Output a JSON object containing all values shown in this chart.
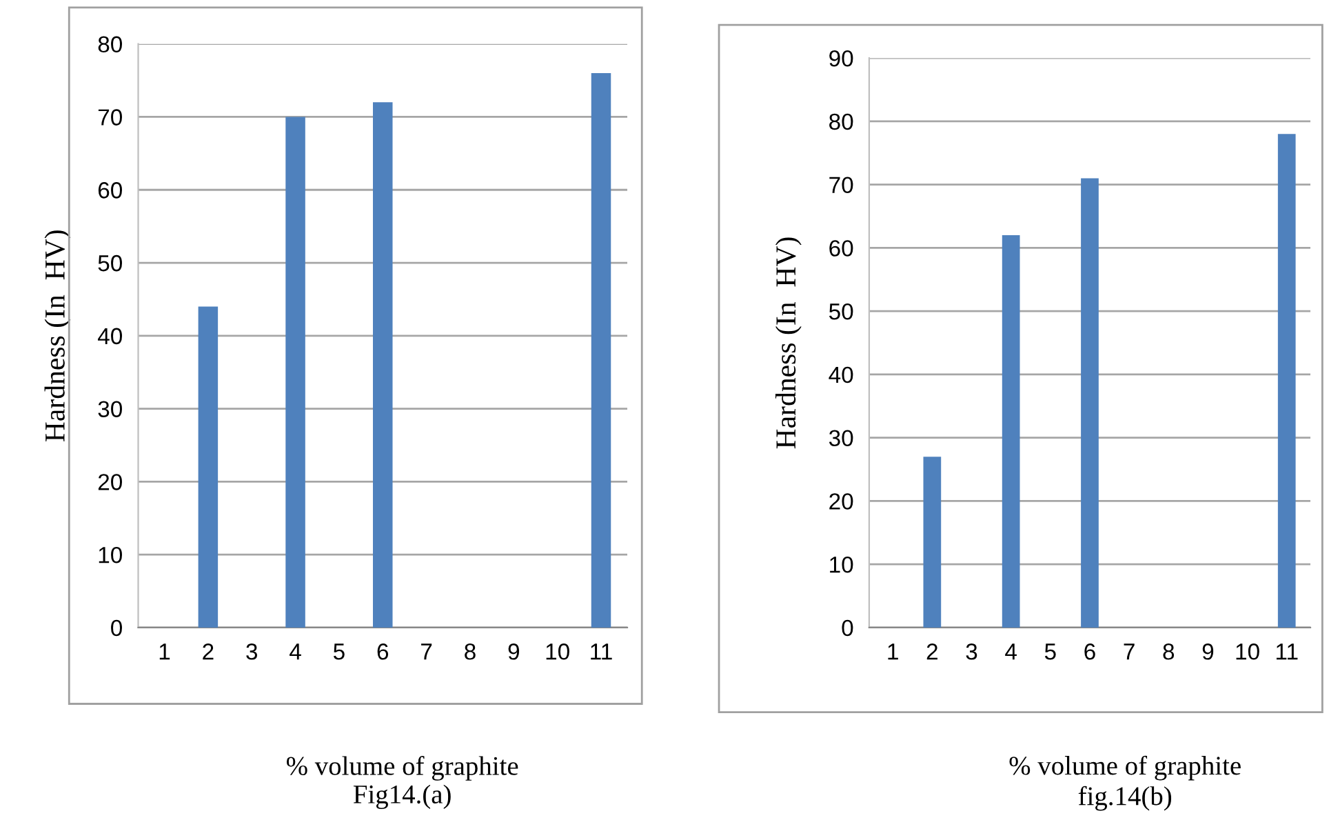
{
  "chart_data": [
    {
      "type": "bar",
      "xlabel": "% volume of graphite",
      "ylabel": "Hardness (In  HV)",
      "annotations": [
        "Fig14.(a)"
      ],
      "categories": [
        "1",
        "2",
        "3",
        "4",
        "5",
        "6",
        "7",
        "8",
        "9",
        "10",
        "11"
      ],
      "values": [
        null,
        44,
        null,
        70,
        null,
        72,
        null,
        null,
        null,
        null,
        76
      ],
      "color": "#4f81bd",
      "ylim": [
        0,
        80
      ],
      "yticks": [
        0,
        10,
        20,
        30,
        40,
        50,
        60,
        70,
        80
      ],
      "grid": "y",
      "legend": false
    },
    {
      "type": "bar",
      "xlabel": "% volume of graphite",
      "ylabel": "Hardness (In  HV)",
      "annotations": [
        "fig.14(b)"
      ],
      "categories": [
        "1",
        "2",
        "3",
        "4",
        "5",
        "6",
        "7",
        "8",
        "9",
        "10",
        "11"
      ],
      "values": [
        null,
        27,
        null,
        62,
        null,
        71,
        null,
        null,
        null,
        null,
        78
      ],
      "color": "#4f81bd",
      "ylim": [
        0,
        90
      ],
      "yticks": [
        0,
        10,
        20,
        30,
        40,
        50,
        60,
        70,
        80,
        90
      ],
      "grid": "y",
      "legend": false
    }
  ]
}
